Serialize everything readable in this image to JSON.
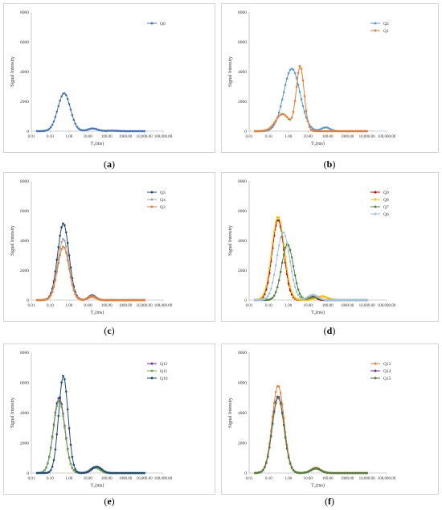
{
  "chart_data": [
    {
      "panel": "a",
      "caption": "a",
      "type": "line",
      "xlabel": "T₂(ms)",
      "ylabel": "Signal Intensity",
      "xscale": "log",
      "xlim": [
        0.01,
        100000
      ],
      "ylim": [
        0,
        8000
      ],
      "xticks": [
        "0.01",
        "0.10",
        "1.00",
        "10.00",
        "100.00",
        "1000.00",
        "10,000.00",
        "100,000.00"
      ],
      "yticks": [
        "0",
        "2000",
        "4000",
        "6000",
        "8000"
      ],
      "legend_position": "top-right",
      "series": [
        {
          "name": "Q0",
          "color": "#4472c4",
          "peaks": [
            {
              "center": 0.55,
              "amp": 2550,
              "w": 0.33
            },
            {
              "center": 18,
              "amp": 180,
              "w": 0.25
            },
            {
              "center": 180,
              "amp": 30,
              "w": 0.3
            }
          ],
          "range": [
            0.02,
            10000
          ]
        }
      ]
    },
    {
      "panel": "b",
      "caption": "b",
      "type": "line",
      "xlabel": "T₂(ms)",
      "ylabel": "Signal Intensity",
      "xscale": "log",
      "xlim": [
        0.01,
        100000
      ],
      "ylim": [
        0,
        8000
      ],
      "xticks": [
        "0.01",
        "0.10",
        "1.00",
        "10.00",
        "100.00",
        "1000.00",
        "10,000.00",
        "100,000.00"
      ],
      "yticks": [
        "0",
        "2000",
        "4000",
        "6000",
        "8000"
      ],
      "legend_position": "top-right",
      "series": [
        {
          "name": "Q2",
          "color": "#5b9bd5",
          "peaks": [
            {
              "center": 1.5,
              "amp": 4200,
              "w": 0.42
            },
            {
              "center": 80,
              "amp": 250,
              "w": 0.22
            }
          ],
          "range": [
            0.02,
            10000
          ]
        },
        {
          "name": "Q1",
          "color": "#ed7d31",
          "peaks": [
            {
              "center": 4.0,
              "amp": 4350,
              "w": 0.2
            },
            {
              "center": 0.5,
              "amp": 1150,
              "w": 0.35
            }
          ],
          "range": [
            0.02,
            10000
          ]
        }
      ]
    },
    {
      "panel": "c",
      "caption": "c",
      "type": "line",
      "xlabel": "T₂(ms)",
      "ylabel": "Signal Intensity",
      "xscale": "log",
      "xlim": [
        0.01,
        100000
      ],
      "ylim": [
        0,
        8000
      ],
      "xticks": [
        "0.01",
        "0.10",
        "1.00",
        "10.00",
        "100.00",
        "1000.00",
        "10,000.00",
        "100,000.00"
      ],
      "yticks": [
        "0",
        "2000",
        "4000",
        "6000",
        "8000"
      ],
      "legend_position": "top-right",
      "series": [
        {
          "name": "Q5",
          "color": "#264478",
          "peaks": [
            {
              "center": 0.5,
              "amp": 5150,
              "w": 0.3
            },
            {
              "center": 17,
              "amp": 320,
              "w": 0.2
            }
          ],
          "range": [
            0.02,
            10000
          ]
        },
        {
          "name": "Q4",
          "color": "#a5a5a5",
          "peaks": [
            {
              "center": 0.5,
              "amp": 4100,
              "w": 0.3
            },
            {
              "center": 17,
              "amp": 260,
              "w": 0.2
            }
          ],
          "range": [
            0.02,
            10000
          ]
        },
        {
          "name": "Q3",
          "color": "#ed7d31",
          "peaks": [
            {
              "center": 0.5,
              "amp": 3600,
              "w": 0.3
            },
            {
              "center": 17,
              "amp": 220,
              "w": 0.2
            }
          ],
          "range": [
            0.02,
            10000
          ]
        }
      ]
    },
    {
      "panel": "d",
      "caption": "d",
      "type": "line",
      "xlabel": "T₂(ms)",
      "ylabel": "Signal Intensity",
      "xscale": "log",
      "xlim": [
        0.01,
        100000
      ],
      "ylim": [
        0,
        8000
      ],
      "xticks": [
        "0.01",
        "0.10",
        "1.00",
        "10.00",
        "100.00",
        "1000.00",
        "10,000.00",
        "100,000.00"
      ],
      "yticks": [
        "0",
        "2000",
        "4000",
        "6000",
        "8000"
      ],
      "legend_position": "top-right",
      "series": [
        {
          "name": "Q9",
          "color": "#c00000",
          "peaks": [
            {
              "center": 0.3,
              "amp": 5400,
              "w": 0.3
            },
            {
              "center": 15,
              "amp": 300,
              "w": 0.2
            }
          ],
          "range": [
            0.02,
            10000
          ]
        },
        {
          "name": "Q8",
          "color": "#ffc000",
          "peaks": [
            {
              "center": 0.3,
              "amp": 5600,
              "w": 0.32
            },
            {
              "center": 50,
              "amp": 250,
              "w": 0.3
            }
          ],
          "range": [
            0.02,
            10000
          ]
        },
        {
          "name": "Q7",
          "color": "#548235",
          "peaks": [
            {
              "center": 0.9,
              "amp": 3750,
              "w": 0.3
            },
            {
              "center": 20,
              "amp": 200,
              "w": 0.25
            }
          ],
          "range": [
            0.02,
            10000
          ]
        },
        {
          "name": "Q6",
          "color": "#9dc3e6",
          "peaks": [
            {
              "center": 0.55,
              "amp": 4550,
              "w": 0.33
            },
            {
              "center": 18,
              "amp": 350,
              "w": 0.25
            }
          ],
          "range": [
            0.02,
            10000
          ]
        }
      ]
    },
    {
      "panel": "e",
      "caption": "e",
      "type": "line",
      "xlabel": "T₂(ms)",
      "ylabel": "Signal Intensity",
      "xscale": "log",
      "xlim": [
        0.01,
        100000
      ],
      "ylim": [
        0,
        8000
      ],
      "xticks": [
        "0.01",
        "0.10",
        "1.00",
        "10.00",
        "100.00",
        "1000.00",
        "10,000.00",
        "100,000.00"
      ],
      "yticks": [
        "0",
        "2000",
        "4000",
        "6000",
        "8000"
      ],
      "legend_position": "top-right",
      "series": [
        {
          "name": "Q12",
          "color": "#7030a0",
          "peaks": [
            {
              "center": 0.3,
              "amp": 5000,
              "w": 0.3
            },
            {
              "center": 25,
              "amp": 400,
              "w": 0.25
            }
          ],
          "range": [
            0.02,
            10000
          ]
        },
        {
          "name": "Q11",
          "color": "#70ad47",
          "peaks": [
            {
              "center": 0.3,
              "amp": 4800,
              "w": 0.3
            },
            {
              "center": 25,
              "amp": 350,
              "w": 0.25
            }
          ],
          "range": [
            0.02,
            10000
          ]
        },
        {
          "name": "Q10",
          "color": "#1f4e79",
          "peaks": [
            {
              "center": 0.5,
              "amp": 6450,
              "w": 0.25
            },
            {
              "center": 30,
              "amp": 420,
              "w": 0.25
            }
          ],
          "range": [
            0.02,
            10000
          ]
        }
      ]
    },
    {
      "panel": "f",
      "caption": "f",
      "type": "line",
      "xlabel": "T₂(ms)",
      "ylabel": "Signal Intensity",
      "xscale": "log",
      "xlim": [
        0.01,
        100000
      ],
      "ylim": [
        0,
        8000
      ],
      "xticks": [
        "0.01",
        "0.10",
        "1.00",
        "10.00",
        "100.00",
        "1000.00",
        "10,000.00",
        "100,000.00"
      ],
      "yticks": [
        "0",
        "2000",
        "4000",
        "6000",
        "8000"
      ],
      "legend_position": "top-right",
      "series": [
        {
          "name": "Q13",
          "color": "#ed7d31",
          "peaks": [
            {
              "center": 0.3,
              "amp": 5800,
              "w": 0.3
            },
            {
              "center": 25,
              "amp": 350,
              "w": 0.25
            }
          ],
          "range": [
            0.02,
            10000
          ]
        },
        {
          "name": "Q14",
          "color": "#7030a0",
          "peaks": [
            {
              "center": 0.3,
              "amp": 5100,
              "w": 0.3
            },
            {
              "center": 25,
              "amp": 300,
              "w": 0.25
            }
          ],
          "range": [
            0.02,
            10000
          ]
        },
        {
          "name": "Q15",
          "color": "#548235",
          "peaks": [
            {
              "center": 0.3,
              "amp": 5000,
              "w": 0.3
            },
            {
              "center": 25,
              "amp": 300,
              "w": 0.25
            }
          ],
          "range": [
            0.02,
            10000
          ]
        }
      ]
    }
  ]
}
